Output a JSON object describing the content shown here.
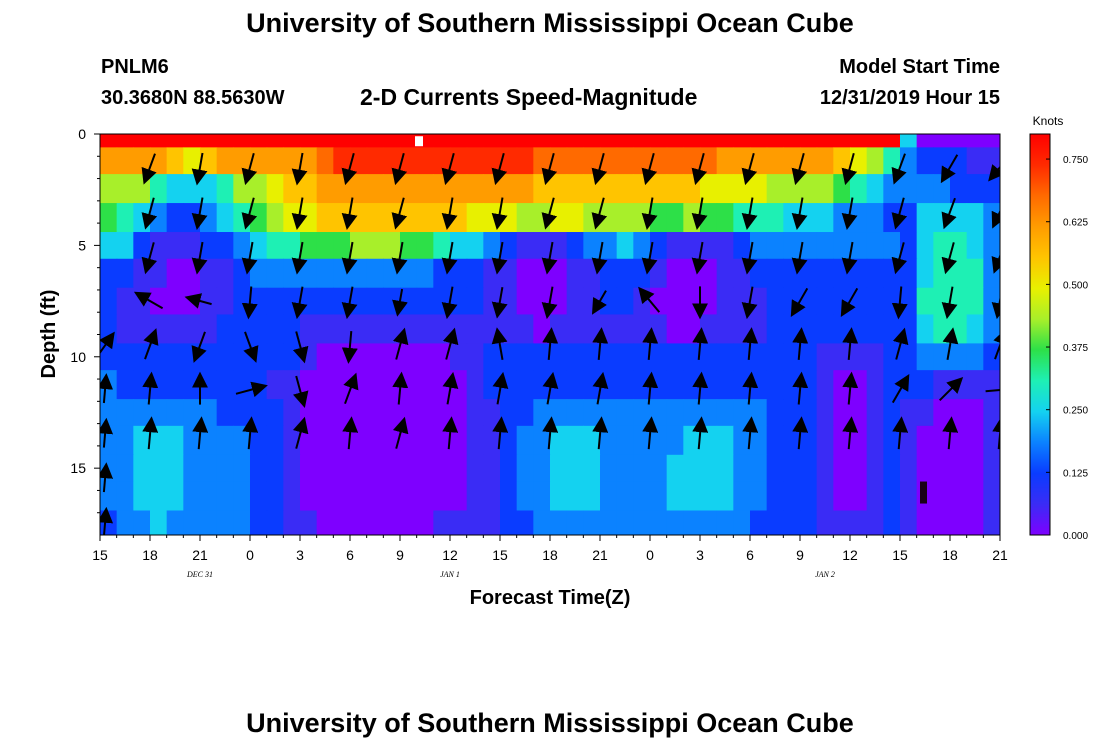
{
  "header": {
    "title": "University of Southern Mississippi Ocean Cube",
    "station_id": "PNLM6",
    "station_coords": "30.3680N 88.5630W",
    "subtitle": "2-D Currents Speed-Magnitude",
    "model_start_label": "Model Start Time",
    "model_start_value": "12/31/2019 Hour 15"
  },
  "footer": {
    "title": "University of Southern Mississippi Ocean Cube"
  },
  "colors": {
    "ramp": [
      "#7e00ff",
      "#3a2cf5",
      "#0a3cff",
      "#0b82ff",
      "#14d2f0",
      "#1ef0b4",
      "#2de048",
      "#a8ef2a",
      "#e8f000",
      "#ffc400",
      "#ff9c00",
      "#ff6a00",
      "#ff2a00",
      "#ff0000"
    ],
    "arrow": "#000000",
    "white_patch": "#ffffff",
    "dark_patch": "#1a0016"
  },
  "chart_data": {
    "type": "heatmap",
    "title": "2-D Currents Speed-Magnitude",
    "xlabel": "Forecast Time(Z)",
    "ylabel": "Depth (ft)",
    "x_tick_labels": [
      "15",
      "18",
      "21",
      "0",
      "3",
      "6",
      "9",
      "12",
      "15",
      "18",
      "21",
      "0",
      "3",
      "6",
      "9",
      "12",
      "15",
      "18",
      "21"
    ],
    "date_labels": [
      {
        "text": "DEC 31",
        "forecast_hour": 6
      },
      {
        "text": "JAN 1",
        "forecast_hour": 21
      },
      {
        "text": "JAN 2",
        "forecast_hour": 43.5
      }
    ],
    "xlim": [
      0,
      54
    ],
    "y_ticks": [
      0,
      5,
      10,
      15
    ],
    "ylim": [
      0,
      18
    ],
    "colorbar": {
      "label": "Knots",
      "range": [
        0,
        0.8
      ],
      "ticks": [
        "0.000",
        "0.125",
        "0.250",
        "0.375",
        "0.500",
        "0.625",
        "0.750"
      ]
    },
    "depth_bands_ft": [
      [
        0,
        0.6
      ],
      [
        0.6,
        1.8
      ],
      [
        1.8,
        3.1
      ],
      [
        3.1,
        4.4
      ],
      [
        4.4,
        5.6
      ],
      [
        5.6,
        6.9
      ],
      [
        6.9,
        8.1
      ],
      [
        8.1,
        9.4
      ],
      [
        9.4,
        10.6
      ],
      [
        10.6,
        11.9
      ],
      [
        11.9,
        13.1
      ],
      [
        13.1,
        14.4
      ],
      [
        14.4,
        15.6
      ],
      [
        15.6,
        16.9
      ],
      [
        16.9,
        18
      ]
    ],
    "speed_knots": [
      [
        0.76,
        0.76,
        0.76,
        0.76,
        0.76,
        0.76,
        0.76,
        0.76,
        0.76,
        0.76,
        0.76,
        0.76,
        0.76,
        0.76,
        0.76,
        0.76,
        0.76,
        0.76,
        0.76,
        0.76,
        0.76,
        0.76,
        0.76,
        0.76,
        0.76,
        0.76,
        0.76,
        0.76,
        0.76,
        0.76,
        0.76,
        0.76,
        0.76,
        0.76,
        0.76,
        0.76,
        0.76,
        0.76,
        0.76,
        0.76,
        0.76,
        0.76,
        0.76,
        0.76,
        0.76,
        0.76,
        0.76,
        0.76,
        0.25,
        0.05,
        0.05,
        0.05,
        0.05,
        0.05
      ],
      [
        0.6,
        0.62,
        0.62,
        0.6,
        0.55,
        0.5,
        0.55,
        0.6,
        0.62,
        0.62,
        0.6,
        0.6,
        0.62,
        0.66,
        0.7,
        0.72,
        0.72,
        0.72,
        0.72,
        0.72,
        0.72,
        0.72,
        0.72,
        0.72,
        0.7,
        0.7,
        0.68,
        0.66,
        0.66,
        0.66,
        0.66,
        0.66,
        0.66,
        0.66,
        0.66,
        0.66,
        0.64,
        0.62,
        0.62,
        0.6,
        0.6,
        0.58,
        0.58,
        0.58,
        0.55,
        0.5,
        0.45,
        0.3,
        0.2,
        0.16,
        0.14,
        0.12,
        0.1,
        0.1
      ],
      [
        0.45,
        0.45,
        0.42,
        0.32,
        0.26,
        0.24,
        0.26,
        0.3,
        0.4,
        0.45,
        0.5,
        0.52,
        0.55,
        0.58,
        0.6,
        0.62,
        0.62,
        0.62,
        0.62,
        0.62,
        0.6,
        0.6,
        0.6,
        0.58,
        0.58,
        0.58,
        0.56,
        0.56,
        0.56,
        0.56,
        0.56,
        0.54,
        0.54,
        0.52,
        0.52,
        0.52,
        0.5,
        0.48,
        0.48,
        0.46,
        0.44,
        0.44,
        0.42,
        0.42,
        0.38,
        0.3,
        0.26,
        0.2,
        0.18,
        0.18,
        0.18,
        0.16,
        0.15,
        0.14
      ],
      [
        0.36,
        0.33,
        0.28,
        0.2,
        0.15,
        0.15,
        0.2,
        0.24,
        0.3,
        0.36,
        0.42,
        0.46,
        0.5,
        0.52,
        0.54,
        0.56,
        0.56,
        0.56,
        0.56,
        0.54,
        0.54,
        0.52,
        0.5,
        0.48,
        0.46,
        0.44,
        0.44,
        0.46,
        0.46,
        0.44,
        0.42,
        0.4,
        0.4,
        0.38,
        0.38,
        0.4,
        0.38,
        0.36,
        0.34,
        0.32,
        0.3,
        0.28,
        0.26,
        0.24,
        0.22,
        0.2,
        0.18,
        0.16,
        0.16,
        0.24,
        0.26,
        0.26,
        0.24,
        0.18
      ],
      [
        0.28,
        0.24,
        0.16,
        0.1,
        0.08,
        0.08,
        0.12,
        0.16,
        0.22,
        0.28,
        0.32,
        0.34,
        0.36,
        0.38,
        0.38,
        0.4,
        0.4,
        0.4,
        0.38,
        0.36,
        0.32,
        0.28,
        0.24,
        0.2,
        0.12,
        0.08,
        0.06,
        0.08,
        0.14,
        0.18,
        0.22,
        0.24,
        0.2,
        0.12,
        0.08,
        0.06,
        0.06,
        0.1,
        0.16,
        0.2,
        0.22,
        0.22,
        0.22,
        0.22,
        0.2,
        0.2,
        0.2,
        0.18,
        0.16,
        0.26,
        0.3,
        0.3,
        0.28,
        0.2
      ],
      [
        0.16,
        0.14,
        0.1,
        0.06,
        0.05,
        0.05,
        0.08,
        0.1,
        0.14,
        0.18,
        0.2,
        0.22,
        0.22,
        0.22,
        0.22,
        0.22,
        0.2,
        0.2,
        0.2,
        0.18,
        0.16,
        0.14,
        0.12,
        0.1,
        0.06,
        0.04,
        0.03,
        0.04,
        0.08,
        0.1,
        0.14,
        0.16,
        0.12,
        0.06,
        0.04,
        0.03,
        0.04,
        0.06,
        0.1,
        0.14,
        0.16,
        0.16,
        0.16,
        0.16,
        0.16,
        0.16,
        0.16,
        0.14,
        0.14,
        0.28,
        0.32,
        0.32,
        0.3,
        0.22
      ],
      [
        0.12,
        0.1,
        0.08,
        0.05,
        0.03,
        0.04,
        0.08,
        0.1,
        0.12,
        0.14,
        0.14,
        0.14,
        0.14,
        0.14,
        0.14,
        0.14,
        0.13,
        0.13,
        0.13,
        0.12,
        0.12,
        0.12,
        0.12,
        0.1,
        0.06,
        0.04,
        0.03,
        0.04,
        0.06,
        0.1,
        0.12,
        0.12,
        0.08,
        0.05,
        0.04,
        0.03,
        0.04,
        0.06,
        0.08,
        0.1,
        0.12,
        0.12,
        0.12,
        0.12,
        0.12,
        0.12,
        0.12,
        0.12,
        0.14,
        0.3,
        0.34,
        0.34,
        0.32,
        0.22
      ],
      [
        0.12,
        0.1,
        0.1,
        0.08,
        0.06,
        0.06,
        0.1,
        0.12,
        0.12,
        0.12,
        0.12,
        0.12,
        0.1,
        0.06,
        0.06,
        0.06,
        0.06,
        0.06,
        0.06,
        0.06,
        0.08,
        0.1,
        0.1,
        0.1,
        0.08,
        0.06,
        0.05,
        0.06,
        0.08,
        0.1,
        0.1,
        0.1,
        0.08,
        0.06,
        0.05,
        0.05,
        0.06,
        0.08,
        0.1,
        0.1,
        0.12,
        0.12,
        0.12,
        0.12,
        0.12,
        0.12,
        0.12,
        0.12,
        0.14,
        0.26,
        0.3,
        0.3,
        0.28,
        0.2
      ],
      [
        0.16,
        0.14,
        0.12,
        0.12,
        0.12,
        0.12,
        0.12,
        0.14,
        0.14,
        0.14,
        0.12,
        0.12,
        0.1,
        0.05,
        0.04,
        0.04,
        0.04,
        0.04,
        0.04,
        0.04,
        0.04,
        0.06,
        0.1,
        0.14,
        0.16,
        0.16,
        0.16,
        0.16,
        0.16,
        0.16,
        0.16,
        0.16,
        0.16,
        0.16,
        0.16,
        0.16,
        0.16,
        0.16,
        0.16,
        0.16,
        0.16,
        0.16,
        0.14,
        0.1,
        0.06,
        0.06,
        0.1,
        0.14,
        0.14,
        0.18,
        0.2,
        0.2,
        0.18,
        0.16
      ],
      [
        0.18,
        0.16,
        0.14,
        0.14,
        0.14,
        0.14,
        0.14,
        0.14,
        0.14,
        0.12,
        0.1,
        0.06,
        0.04,
        0.04,
        0.03,
        0.03,
        0.03,
        0.03,
        0.03,
        0.03,
        0.04,
        0.05,
        0.08,
        0.12,
        0.14,
        0.14,
        0.14,
        0.14,
        0.14,
        0.14,
        0.14,
        0.14,
        0.14,
        0.14,
        0.14,
        0.14,
        0.14,
        0.14,
        0.14,
        0.12,
        0.12,
        0.12,
        0.12,
        0.08,
        0.05,
        0.05,
        0.08,
        0.12,
        0.12,
        0.12,
        0.1,
        0.08,
        0.08,
        0.06
      ],
      [
        0.18,
        0.18,
        0.2,
        0.22,
        0.22,
        0.2,
        0.18,
        0.16,
        0.16,
        0.14,
        0.12,
        0.06,
        0.04,
        0.03,
        0.02,
        0.02,
        0.02,
        0.02,
        0.02,
        0.02,
        0.03,
        0.04,
        0.06,
        0.1,
        0.14,
        0.16,
        0.18,
        0.2,
        0.2,
        0.2,
        0.2,
        0.18,
        0.18,
        0.18,
        0.18,
        0.18,
        0.2,
        0.2,
        0.2,
        0.18,
        0.16,
        0.14,
        0.12,
        0.08,
        0.05,
        0.05,
        0.08,
        0.12,
        0.1,
        0.06,
        0.04,
        0.04,
        0.05,
        0.06
      ],
      [
        0.18,
        0.2,
        0.24,
        0.26,
        0.24,
        0.2,
        0.2,
        0.2,
        0.18,
        0.14,
        0.12,
        0.06,
        0.04,
        0.02,
        0.01,
        0.01,
        0.01,
        0.01,
        0.01,
        0.01,
        0.02,
        0.04,
        0.06,
        0.1,
        0.14,
        0.18,
        0.22,
        0.24,
        0.24,
        0.24,
        0.22,
        0.2,
        0.2,
        0.2,
        0.22,
        0.24,
        0.24,
        0.24,
        0.22,
        0.18,
        0.16,
        0.14,
        0.12,
        0.08,
        0.05,
        0.05,
        0.08,
        0.12,
        0.1,
        0.03,
        0.02,
        0.02,
        0.03,
        0.06
      ],
      [
        0.18,
        0.2,
        0.24,
        0.28,
        0.26,
        0.2,
        0.2,
        0.22,
        0.2,
        0.14,
        0.12,
        0.06,
        0.04,
        0.02,
        0.01,
        0.01,
        0.01,
        0.01,
        0.01,
        0.01,
        0.02,
        0.04,
        0.06,
        0.1,
        0.14,
        0.18,
        0.22,
        0.26,
        0.26,
        0.24,
        0.22,
        0.2,
        0.2,
        0.22,
        0.24,
        0.26,
        0.26,
        0.24,
        0.22,
        0.18,
        0.16,
        0.14,
        0.12,
        0.08,
        0.05,
        0.05,
        0.08,
        0.12,
        0.1,
        0.02,
        0.01,
        0.01,
        0.02,
        0.06
      ],
      [
        0.18,
        0.2,
        0.24,
        0.28,
        0.26,
        0.2,
        0.2,
        0.22,
        0.2,
        0.14,
        0.12,
        0.06,
        0.04,
        0.03,
        0.02,
        0.02,
        0.02,
        0.02,
        0.02,
        0.02,
        0.03,
        0.04,
        0.06,
        0.1,
        0.14,
        0.18,
        0.22,
        0.26,
        0.26,
        0.24,
        0.22,
        0.2,
        0.2,
        0.22,
        0.24,
        0.26,
        0.26,
        0.24,
        0.22,
        0.18,
        0.16,
        0.14,
        0.12,
        0.08,
        0.05,
        0.05,
        0.08,
        0.12,
        0.1,
        0.02,
        0.01,
        0.01,
        0.02,
        0.06
      ],
      [
        0.16,
        0.18,
        0.22,
        0.24,
        0.22,
        0.18,
        0.18,
        0.2,
        0.18,
        0.14,
        0.12,
        0.08,
        0.06,
        0.05,
        0.05,
        0.05,
        0.05,
        0.05,
        0.05,
        0.05,
        0.06,
        0.08,
        0.08,
        0.1,
        0.14,
        0.16,
        0.2,
        0.22,
        0.22,
        0.22,
        0.2,
        0.18,
        0.18,
        0.2,
        0.22,
        0.22,
        0.22,
        0.22,
        0.2,
        0.16,
        0.14,
        0.12,
        0.12,
        0.08,
        0.06,
        0.06,
        0.08,
        0.12,
        0.1,
        0.04,
        0.03,
        0.03,
        0.04,
        0.06
      ]
    ],
    "arrow_columns_hours": [
      3,
      6,
      9,
      12,
      15,
      18,
      21,
      24,
      27,
      30,
      33,
      36,
      39,
      42,
      45,
      48,
      51,
      54
    ],
    "arrow_directions_deg": [
      [
        200,
        190,
        195,
        190,
        195,
        195,
        195,
        195,
        195,
        195,
        195,
        195,
        195,
        195,
        195,
        200,
        210,
        220
      ],
      [
        195,
        190,
        195,
        190,
        190,
        195,
        190,
        190,
        195,
        195,
        190,
        190,
        190,
        190,
        190,
        195,
        200,
        205
      ],
      [
        195,
        190,
        190,
        190,
        190,
        190,
        190,
        190,
        190,
        190,
        190,
        190,
        190,
        190,
        190,
        195,
        195,
        200
      ],
      [
        300,
        285,
        185,
        190,
        190,
        190,
        190,
        190,
        190,
        210,
        320,
        180,
        190,
        210,
        210,
        185,
        190,
        190
      ],
      [
        20,
        200,
        160,
        165,
        185,
        15,
        15,
        350,
        5,
        5,
        5,
        5,
        5,
        5,
        5,
        15,
        10,
        20
      ],
      [
        5,
        0,
        75,
        165,
        20,
        5,
        10,
        10,
        10,
        10,
        5,
        5,
        5,
        5,
        5,
        30,
        45,
        85
      ],
      [
        5,
        5,
        5,
        15,
        5,
        15,
        5,
        5,
        5,
        5,
        5,
        5,
        5,
        5,
        5,
        5,
        5,
        5
      ]
    ],
    "arrow_rows_ft": [
      1,
      3,
      5,
      7,
      9,
      11,
      13
    ],
    "arrow_lengths_px": [
      [
        29,
        29,
        29,
        29,
        29,
        29,
        29,
        29,
        29,
        29,
        29,
        29,
        29,
        29,
        29,
        29,
        29,
        29
      ],
      [
        29,
        29,
        29,
        29,
        29,
        29,
        29,
        29,
        29,
        29,
        29,
        29,
        29,
        29,
        29,
        29,
        29,
        29
      ],
      [
        29,
        29,
        29,
        29,
        29,
        29,
        29,
        29,
        29,
        29,
        29,
        29,
        29,
        29,
        29,
        29,
        29,
        29
      ],
      [
        29,
        24,
        29,
        29,
        29,
        24,
        29,
        28,
        29,
        24,
        29,
        29,
        29,
        29,
        29,
        29,
        29,
        29
      ],
      [
        29,
        29,
        29,
        29,
        29,
        29,
        29,
        29,
        29,
        29,
        29,
        29,
        29,
        29,
        29,
        29,
        29,
        29
      ],
      [
        29,
        29,
        29,
        29,
        29,
        29,
        29,
        29,
        29,
        29,
        29,
        29,
        29,
        29,
        29,
        29,
        29,
        29
      ],
      [
        29,
        29,
        29,
        29,
        29,
        29,
        29,
        29,
        29,
        29,
        29,
        29,
        29,
        29,
        29,
        29,
        29,
        29
      ]
    ]
  }
}
